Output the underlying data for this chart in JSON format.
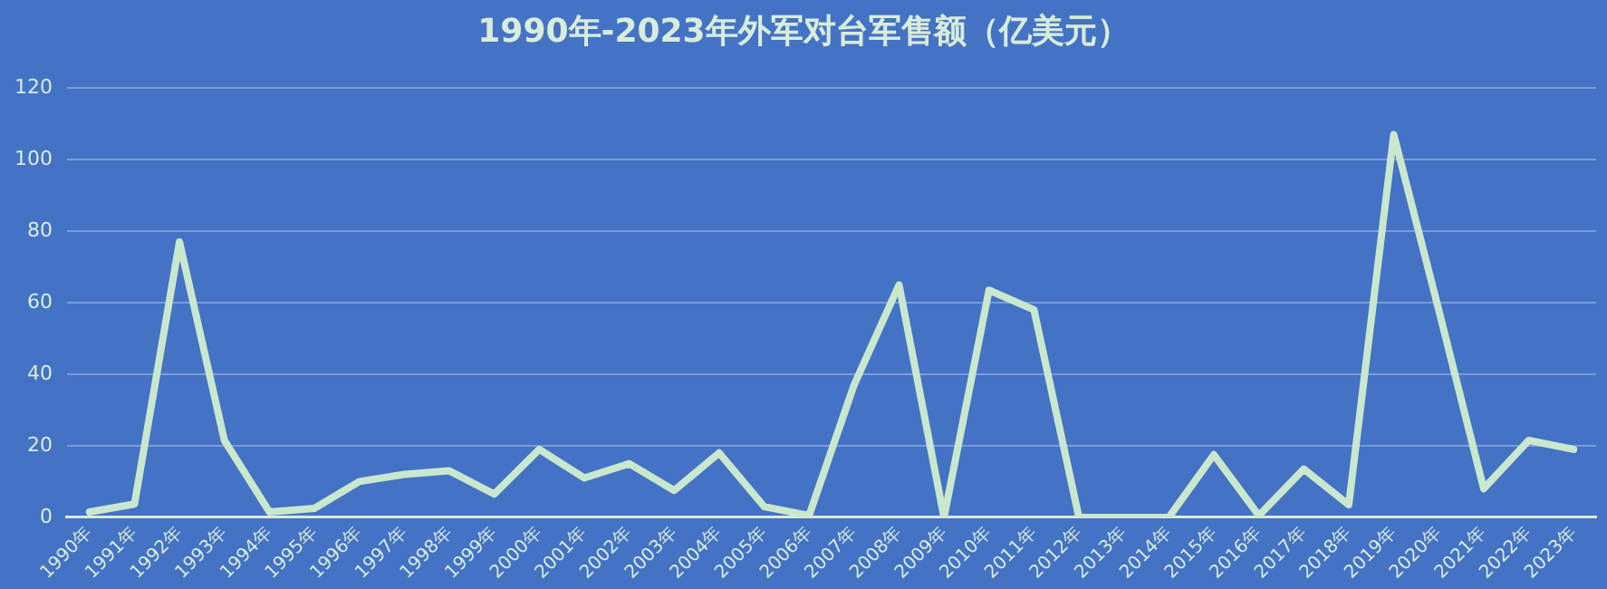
{
  "chart_data": {
    "type": "line",
    "title": "1990年-2023年外军对台军售额（亿美元）",
    "categories": [
      "1990年",
      "1991年",
      "1992年",
      "1993年",
      "1994年",
      "1995年",
      "1996年",
      "1997年",
      "1998年",
      "1999年",
      "2000年",
      "2001年",
      "2002年",
      "2003年",
      "2004年",
      "2005年",
      "2006年",
      "2007年",
      "2008年",
      "2009年",
      "2010年",
      "2011年",
      "2012年",
      "2013年",
      "2014年",
      "2015年",
      "2016年",
      "2017年",
      "2018年",
      "2019年",
      "2020年",
      "2021年",
      "2022年",
      "2023年"
    ],
    "series": [
      {
        "color": "#c9e7cd",
        "values": [
          1.5,
          3.7,
          77,
          21.5,
          1.5,
          2.5,
          10,
          12,
          13,
          6.5,
          19,
          11,
          15,
          7.5,
          18,
          3,
          0.5,
          37,
          65,
          0,
          63.5,
          58,
          0,
          0,
          0,
          17.5,
          0.5,
          13.5,
          3.5,
          107,
          58,
          8,
          21.5,
          19
        ]
      }
    ],
    "ylim": [
      0,
      120
    ],
    "yticks": [
      0,
      20,
      40,
      60,
      80,
      100,
      120
    ],
    "grid": "y",
    "legend": false,
    "marker": "none",
    "line_style": "solid"
  }
}
